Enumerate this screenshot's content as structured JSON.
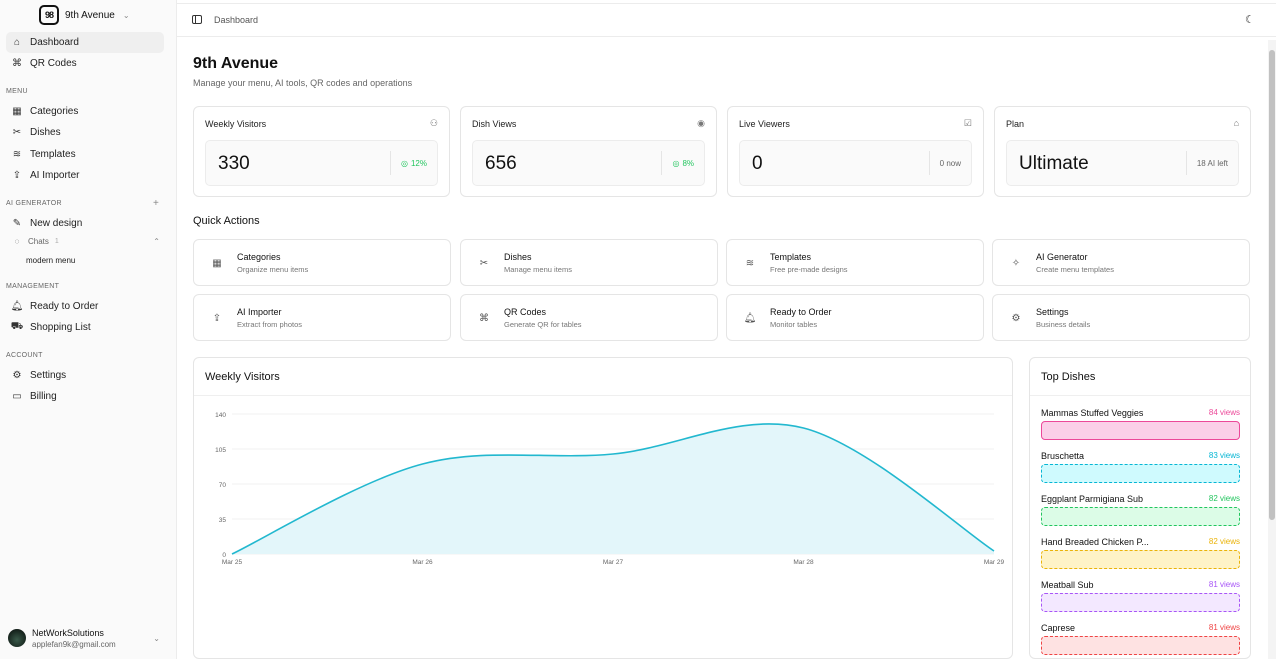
{
  "sidebar": {
    "brand": "9th Avenue",
    "brand_logo": "98",
    "nav_main": [
      {
        "label": "Dashboard",
        "icon": "home-icon",
        "active": true
      },
      {
        "label": "QR Codes",
        "icon": "qr-icon"
      }
    ],
    "menu_section": "MENU",
    "menu_items": [
      {
        "label": "Categories",
        "icon": "grid-icon"
      },
      {
        "label": "Dishes",
        "icon": "utensils-icon"
      },
      {
        "label": "Templates",
        "icon": "layers-icon"
      },
      {
        "label": "AI Importer",
        "icon": "upload-icon"
      }
    ],
    "ai_section": "AI GENERATOR",
    "ai_new": "New design",
    "chats_label": "Chats",
    "chats_count": "1",
    "chat_item": "modern menu",
    "management_section": "MANAGEMENT",
    "management_items": [
      {
        "label": "Ready to Order",
        "icon": "bell-icon"
      },
      {
        "label": "Shopping List",
        "icon": "cart-icon"
      }
    ],
    "account_section": "ACCOUNT",
    "account_items": [
      {
        "label": "Settings",
        "icon": "gear-icon"
      },
      {
        "label": "Billing",
        "icon": "card-icon"
      }
    ],
    "user": {
      "name": "NetWorkSolutions",
      "email": "applefan9k@gmail.com"
    }
  },
  "topbar": {
    "breadcrumb": "Dashboard"
  },
  "header": {
    "title": "9th Avenue",
    "subtitle": "Manage your menu, AI tools, QR codes and operations"
  },
  "stats": [
    {
      "label": "Weekly Visitors",
      "value": "330",
      "trend": "12%",
      "trend_kind": "up",
      "icon": "users-icon"
    },
    {
      "label": "Dish Views",
      "value": "656",
      "trend": "8%",
      "trend_kind": "up",
      "icon": "eye-icon"
    },
    {
      "label": "Live Viewers",
      "value": "0",
      "trend": "0 now",
      "trend_kind": "neutral",
      "icon": "activity-icon"
    },
    {
      "label": "Plan",
      "value": "Ultimate",
      "trend": "18 AI left",
      "trend_kind": "neutral",
      "icon": "building-icon"
    }
  ],
  "quick_actions": {
    "title": "Quick Actions",
    "items": [
      {
        "title": "Categories",
        "desc": "Organize menu items",
        "icon": "grid-icon"
      },
      {
        "title": "Dishes",
        "desc": "Manage menu items",
        "icon": "utensils-icon"
      },
      {
        "title": "Templates",
        "desc": "Free pre-made designs",
        "icon": "layers-icon"
      },
      {
        "title": "AI Generator",
        "desc": "Create menu templates",
        "icon": "sparkle-icon"
      },
      {
        "title": "AI Importer",
        "desc": "Extract from photos",
        "icon": "upload-icon"
      },
      {
        "title": "QR Codes",
        "desc": "Generate QR for tables",
        "icon": "qr-icon"
      },
      {
        "title": "Ready to Order",
        "desc": "Monitor tables",
        "icon": "bell-icon"
      },
      {
        "title": "Settings",
        "desc": "Business details",
        "icon": "gear-icon"
      }
    ]
  },
  "chart_data": {
    "type": "area",
    "title": "Weekly Visitors",
    "x": [
      "Mar 25",
      "Mar 26",
      "Mar 27",
      "Mar 28",
      "Mar 29"
    ],
    "values": [
      0,
      90,
      100,
      126,
      3
    ],
    "ylim": [
      0,
      140
    ],
    "yticks": [
      "0",
      "35",
      "70",
      "105",
      "140"
    ],
    "color": "#22b8cf",
    "fill": "#e3f6fa"
  },
  "top_dishes": {
    "title": "Top Dishes",
    "items": [
      {
        "name": "Mammas Stuffed Veggies",
        "views": "84 views",
        "color": "#ec4899",
        "bg": "#fbcfe8"
      },
      {
        "name": "Bruschetta",
        "views": "83 views",
        "color": "#06b6d4",
        "bg": "#cffafe"
      },
      {
        "name": "Eggplant Parmigiana Sub",
        "views": "82 views",
        "color": "#22c55e",
        "bg": "#dcfce7"
      },
      {
        "name": "Hand Breaded Chicken P...",
        "views": "82 views",
        "color": "#eab308",
        "bg": "#fef3c7"
      },
      {
        "name": "Meatball Sub",
        "views": "81 views",
        "color": "#a855f7",
        "bg": "#f3e8ff"
      },
      {
        "name": "Caprese",
        "views": "81 views",
        "color": "#ef4444",
        "bg": "#fee2e2"
      }
    ]
  }
}
